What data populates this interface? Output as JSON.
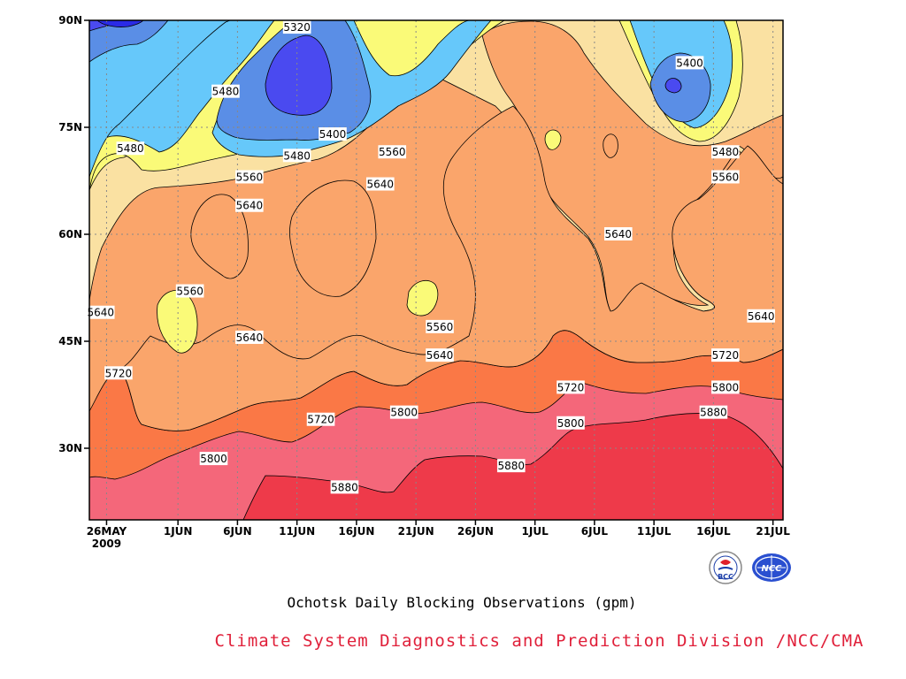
{
  "chart_data": {
    "type": "heatmap",
    "title": "Ochotsk Daily Blocking Observations (gpm)",
    "credit": "Climate System Diagnostics and Prediction Division /NCC/CMA",
    "x_axis": {
      "ticks": [
        {
          "label": "26MAY",
          "sub": "2009",
          "day": 1
        },
        {
          "label": "1JUN",
          "day": 7
        },
        {
          "label": "6JUN",
          "day": 12
        },
        {
          "label": "11JUN",
          "day": 17
        },
        {
          "label": "16JUN",
          "day": 22
        },
        {
          "label": "21JUN",
          "day": 27
        },
        {
          "label": "26JUN",
          "day": 32
        },
        {
          "label": "1JUL",
          "day": 37
        },
        {
          "label": "6JUL",
          "day": 42
        },
        {
          "label": "11JUL",
          "day": 47
        },
        {
          "label": "16JUL",
          "day": 52
        },
        {
          "label": "21JUL",
          "day": 57
        }
      ],
      "range": [
        "2009-05-25",
        "2009-07-22"
      ]
    },
    "y_axis": {
      "ticks": [
        "30N",
        "45N",
        "60N",
        "75N",
        "90N"
      ],
      "tick_values": [
        30,
        45,
        60,
        75,
        90
      ],
      "range": [
        20,
        90
      ]
    },
    "grid": true,
    "contour_levels": [
      5320,
      5400,
      5480,
      5560,
      5640,
      5720,
      5800,
      5880
    ],
    "colors": {
      "lt5320": "#2a2ae6",
      "5320": "#4a4af0",
      "5400": "#5a8ee6",
      "5480": "#66c8fa",
      "5560": "#fafa78",
      "5640": "#fae1a2",
      "5720": "#faa56b",
      "5800": "#fa7846",
      "5880": "#f4677a",
      "gt5880": "#ee3a4a"
    },
    "contour_labels": [
      {
        "text": "5320",
        "day": 17,
        "lat": 89
      },
      {
        "text": "5400",
        "day": 50,
        "lat": 84
      },
      {
        "text": "5480",
        "day": 11,
        "lat": 80
      },
      {
        "text": "5400",
        "day": 20,
        "lat": 74
      },
      {
        "text": "5480",
        "day": 3,
        "lat": 72
      },
      {
        "text": "5480",
        "day": 17,
        "lat": 71
      },
      {
        "text": "5560",
        "day": 25,
        "lat": 71.5
      },
      {
        "text": "5480",
        "day": 53,
        "lat": 71.5
      },
      {
        "text": "5560",
        "day": 13,
        "lat": 68
      },
      {
        "text": "5640",
        "day": 24,
        "lat": 67
      },
      {
        "text": "5560",
        "day": 53,
        "lat": 68
      },
      {
        "text": "5640",
        "day": 13,
        "lat": 64
      },
      {
        "text": "5640",
        "day": 44,
        "lat": 60
      },
      {
        "text": "5560",
        "day": 8,
        "lat": 52
      },
      {
        "text": "5640",
        "day": 0.5,
        "lat": 49
      },
      {
        "text": "5640",
        "day": 56,
        "lat": 48.5
      },
      {
        "text": "5560",
        "day": 29,
        "lat": 47
      },
      {
        "text": "5640",
        "day": 13,
        "lat": 45.5
      },
      {
        "text": "5720",
        "day": 2,
        "lat": 40.5
      },
      {
        "text": "5720",
        "day": 53,
        "lat": 43
      },
      {
        "text": "5640",
        "day": 29,
        "lat": 43
      },
      {
        "text": "5720",
        "day": 40,
        "lat": 38.5
      },
      {
        "text": "5800",
        "day": 53,
        "lat": 38.5
      },
      {
        "text": "5800",
        "day": 26,
        "lat": 35
      },
      {
        "text": "5720",
        "day": 19,
        "lat": 34
      },
      {
        "text": "5800",
        "day": 40,
        "lat": 33.5
      },
      {
        "text": "5880",
        "day": 52,
        "lat": 35
      },
      {
        "text": "5880",
        "day": 35,
        "lat": 27.5
      },
      {
        "text": "5800",
        "day": 10,
        "lat": 28.5
      },
      {
        "text": "5880",
        "day": 21,
        "lat": 24.5
      }
    ]
  },
  "logos": {
    "left": "BCC",
    "right": "NCC"
  }
}
